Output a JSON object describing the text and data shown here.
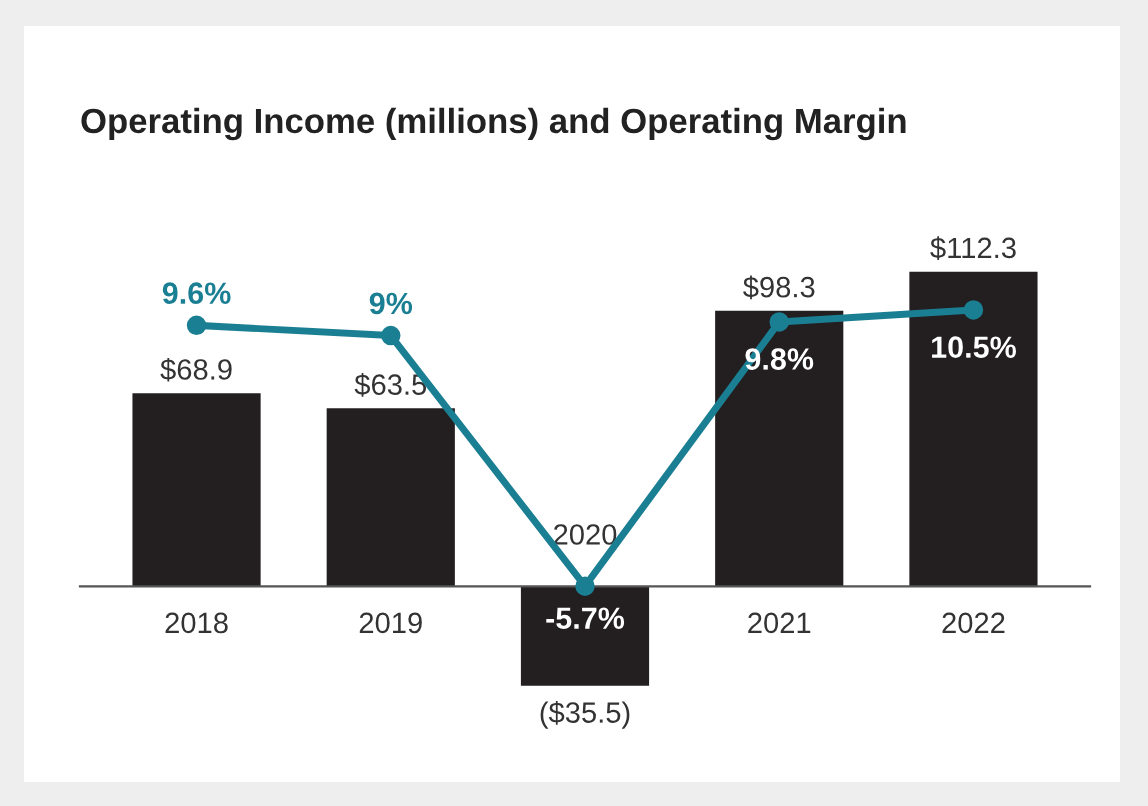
{
  "chart_data": {
    "type": "bar",
    "title": "Operating Income (millions) and Operating Margin",
    "categories": [
      "2018",
      "2019",
      "2020",
      "2021",
      "2022"
    ],
    "series": [
      {
        "color": "#231f20",
        "values": [
          68.9,
          63.5,
          -35.5,
          98.3,
          112.3
        ],
        "value_labels": [
          "$68.9",
          "$63.5",
          "($35.5)",
          "$98.3",
          "$112.3"
        ]
      },
      {
        "type": "line",
        "axis": "y2",
        "color": "#1b7f93",
        "marker": "circle",
        "values": [
          9.6,
          9,
          -5.7,
          9.8,
          10.5
        ],
        "value_labels": [
          "9.6%",
          "9%",
          "-5.7%",
          "9.8%",
          "10.5%"
        ]
      }
    ],
    "legend": false
  }
}
